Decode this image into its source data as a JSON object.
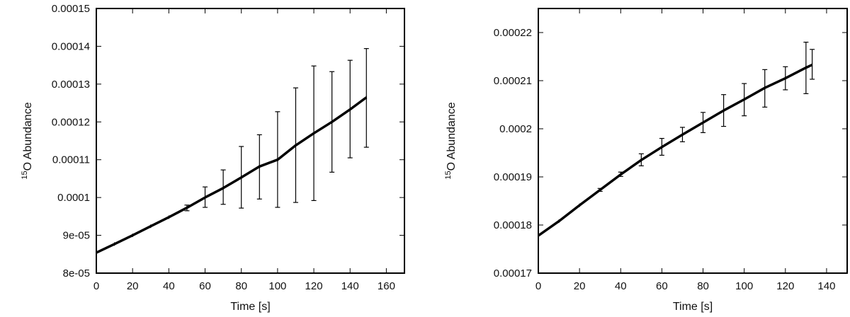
{
  "chart_data": [
    {
      "type": "line",
      "xlabel": "Time [s]",
      "ylabel_sup": "15",
      "ylabel_main": "O Abundance",
      "xlim": [
        0,
        170
      ],
      "ylim": [
        8e-05,
        0.00015
      ],
      "xticks": [
        0,
        20,
        40,
        60,
        80,
        100,
        120,
        140,
        160
      ],
      "xtick_labels": [
        "0",
        "20",
        "40",
        "60",
        "80",
        "100",
        "120",
        "140",
        "160"
      ],
      "yticks": [
        8e-05,
        9e-05,
        0.0001,
        0.00011,
        0.00012,
        0.00013,
        0.00014,
        0.00015
      ],
      "ytick_labels": [
        "8e-05",
        "9e-05",
        "0.0001",
        "0.00011",
        "0.00012",
        "0.00013",
        "0.00014",
        "0.00015"
      ],
      "series": [
        {
          "x": [
            0,
            10,
            20,
            30,
            40,
            50,
            60,
            70,
            80,
            90,
            100,
            110,
            120,
            130,
            140,
            149
          ],
          "y": [
            8.54e-05,
            8.77e-05,
            9e-05,
            9.24e-05,
            9.48e-05,
            9.73e-05,
            0.0001,
            0.0001025,
            0.0001053,
            0.0001082,
            0.00011,
            0.0001138,
            0.000117,
            0.00012,
            0.0001233,
            0.0001265
          ],
          "err_low": [
            null,
            null,
            null,
            null,
            null,
            9.65e-05,
            9.74e-05,
            9.82e-05,
            9.72e-05,
            9.96e-05,
            9.74e-05,
            9.87e-05,
            9.92e-05,
            0.0001067,
            0.0001105,
            0.0001133
          ],
          "err_high": [
            null,
            null,
            null,
            null,
            null,
            9.8e-05,
            0.0001028,
            0.0001073,
            0.0001135,
            0.0001166,
            0.0001227,
            0.000129,
            0.0001348,
            0.0001333,
            0.0001363,
            0.0001394
          ]
        }
      ],
      "grid": false
    },
    {
      "type": "line",
      "xlabel": "Time [s]",
      "ylabel_sup": "15",
      "ylabel_main": "O Abundance",
      "xlim": [
        0,
        150
      ],
      "ylim": [
        0.00017,
        0.000225
      ],
      "xticks": [
        0,
        20,
        40,
        60,
        80,
        100,
        120,
        140
      ],
      "xtick_labels": [
        "0",
        "20",
        "40",
        "60",
        "80",
        "100",
        "120",
        "140"
      ],
      "yticks": [
        0.00017,
        0.00018,
        0.00019,
        0.0002,
        0.00021,
        0.00022
      ],
      "ytick_labels": [
        "0.00017",
        "0.00018",
        "0.00019",
        "0.0002",
        "0.00021",
        "0.00022"
      ],
      "series": [
        {
          "x": [
            0,
            10,
            20,
            30,
            40,
            50,
            60,
            70,
            80,
            90,
            100,
            110,
            120,
            130,
            133
          ],
          "y": [
            0.0001778,
            0.0001808,
            0.0001841,
            0.0001873,
            0.0001905,
            0.0001935,
            0.0001962,
            0.0001988,
            0.0002013,
            0.0002038,
            0.0002061,
            0.0002085,
            0.0002105,
            0.0002127,
            0.0002133
          ],
          "err_low": [
            null,
            null,
            null,
            0.000187,
            0.0001901,
            0.0001923,
            0.0001945,
            0.0001973,
            0.0001992,
            0.0002005,
            0.0002027,
            0.0002045,
            0.0002081,
            0.0002073,
            0.0002103
          ],
          "err_high": [
            null,
            null,
            null,
            0.0001876,
            0.000191,
            0.0001948,
            0.000198,
            0.0002003,
            0.0002034,
            0.0002071,
            0.0002094,
            0.0002123,
            0.0002129,
            0.000218,
            0.0002165
          ]
        }
      ],
      "grid": false
    }
  ]
}
